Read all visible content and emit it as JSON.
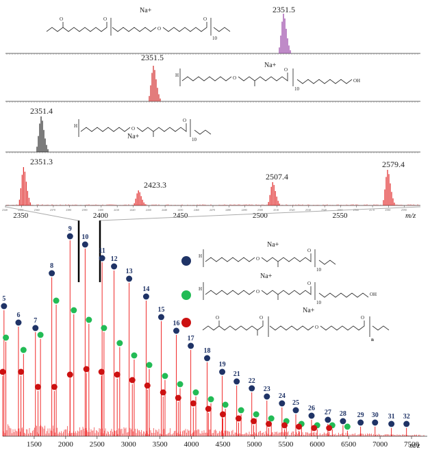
{
  "chart_data": [
    {
      "type": "line",
      "panel": "inset-1",
      "color": "#8a2a9a",
      "peak_labels": [
        {
          "x": 2351.5,
          "text": "2351.5"
        }
      ],
      "ion": "Na+",
      "structure_subscript": "10"
    },
    {
      "type": "line",
      "panel": "inset-2",
      "color": "#cc1111",
      "peak_labels": [
        {
          "x": 2351.5,
          "text": "2351.5"
        }
      ],
      "ion": "Na+",
      "structure_subscript": "10"
    },
    {
      "type": "line",
      "panel": "inset-3",
      "color": "#111111",
      "peak_labels": [
        {
          "x": 2351.4,
          "text": "2351.4"
        }
      ],
      "ion": "Na+",
      "structure_subscript": "10"
    },
    {
      "type": "line",
      "panel": "zoom",
      "color": "#dd1111",
      "xlim": [
        2340,
        2600
      ],
      "peak_labels": [
        {
          "x": 2351.3,
          "text": "2351.3"
        },
        {
          "x": 2423.3,
          "text": "2423.3"
        },
        {
          "x": 2507.4,
          "text": "2507.4"
        },
        {
          "x": 2579.4,
          "text": "2579.4"
        }
      ],
      "minor_ticks": [
        "2340",
        "2350",
        "2360",
        "2370",
        "2380",
        "2390",
        "2400",
        "2410",
        "2420",
        "2430",
        "2440",
        "2450",
        "2460",
        "2470",
        "2480",
        "2490",
        "2500",
        "2510",
        "2520",
        "2530",
        "2540",
        "2550",
        "2560",
        "2570",
        "2580",
        "2590"
      ],
      "major_ticks": [
        "2350",
        "2400",
        "2450",
        "2500",
        "2550"
      ],
      "xlabel": "m/z"
    },
    {
      "type": "line",
      "panel": "full",
      "color": "#ee1111",
      "xlim": [
        1000,
        7750
      ],
      "xticks": [
        "1500",
        "2000",
        "2500",
        "3000",
        "3500",
        "4000",
        "4500",
        "5000",
        "5500",
        "6000",
        "6500",
        "7000",
        "7500"
      ],
      "xlabel": "m/z",
      "series": [
        {
          "name": "blue",
          "color": "#1f3366",
          "points": [
            {
              "n": "5",
              "x": 1020,
              "y": 0.95
            },
            {
              "n": "6",
              "x": 1250,
              "y": 0.83
            },
            {
              "n": "7",
              "x": 1520,
              "y": 0.79
            },
            {
              "n": "8",
              "x": 1780,
              "y": 1.19
            },
            {
              "n": "9",
              "x": 2070,
              "y": 1.46
            },
            {
              "n": "10",
              "x": 2310,
              "y": 1.4
            },
            {
              "n": "11",
              "x": 2580,
              "y": 1.3
            },
            {
              "n": "12",
              "x": 2770,
              "y": 1.24
            },
            {
              "n": "13",
              "x": 3010,
              "y": 1.15
            },
            {
              "n": "14",
              "x": 3280,
              "y": 1.02
            },
            {
              "n": "15",
              "x": 3520,
              "y": 0.87
            },
            {
              "n": "16",
              "x": 3760,
              "y": 0.77
            },
            {
              "n": "17",
              "x": 3990,
              "y": 0.66
            },
            {
              "n": "18",
              "x": 4250,
              "y": 0.57
            },
            {
              "n": "19",
              "x": 4490,
              "y": 0.47
            },
            {
              "n": "21",
              "x": 4720,
              "y": 0.4
            },
            {
              "n": "22",
              "x": 4960,
              "y": 0.35
            },
            {
              "n": "23",
              "x": 5200,
              "y": 0.29
            },
            {
              "n": "24",
              "x": 5440,
              "y": 0.24
            },
            {
              "n": "25",
              "x": 5660,
              "y": 0.19
            },
            {
              "n": "26",
              "x": 5910,
              "y": 0.15
            },
            {
              "n": "27",
              "x": 6170,
              "y": 0.12
            },
            {
              "n": "28",
              "x": 6410,
              "y": 0.11
            },
            {
              "n": "29",
              "x": 6690,
              "y": 0.1
            },
            {
              "n": "30",
              "x": 6920,
              "y": 0.1
            },
            {
              "n": "31",
              "x": 7180,
              "y": 0.09
            },
            {
              "n": "32",
              "x": 7420,
              "y": 0.09
            }
          ]
        },
        {
          "name": "green",
          "points": [
            {
              "x": 1050,
              "y": 0.72
            },
            {
              "x": 1330,
              "y": 0.63
            },
            {
              "x": 1600,
              "y": 0.74
            },
            {
              "x": 1850,
              "y": 0.99
            },
            {
              "x": 2130,
              "y": 0.92
            },
            {
              "x": 2370,
              "y": 0.85
            },
            {
              "x": 2610,
              "y": 0.79
            },
            {
              "x": 2860,
              "y": 0.68
            },
            {
              "x": 3090,
              "y": 0.59
            },
            {
              "x": 3330,
              "y": 0.52
            },
            {
              "x": 3580,
              "y": 0.44
            },
            {
              "x": 3820,
              "y": 0.38
            },
            {
              "x": 4070,
              "y": 0.32
            },
            {
              "x": 4310,
              "y": 0.27
            },
            {
              "x": 4540,
              "y": 0.23
            },
            {
              "x": 4790,
              "y": 0.19
            },
            {
              "x": 5030,
              "y": 0.16
            },
            {
              "x": 5270,
              "y": 0.13
            },
            {
              "x": 5510,
              "y": 0.11
            },
            {
              "x": 5750,
              "y": 0.09
            },
            {
              "x": 6000,
              "y": 0.08
            },
            {
              "x": 6240,
              "y": 0.08
            },
            {
              "x": 6480,
              "y": 0.07
            }
          ]
        },
        {
          "name": "red",
          "points": [
            {
              "x": 1000,
              "y": 0.47
            },
            {
              "x": 1290,
              "y": 0.47
            },
            {
              "x": 1560,
              "y": 0.36
            },
            {
              "x": 1820,
              "y": 0.36
            },
            {
              "x": 2070,
              "y": 0.45
            },
            {
              "x": 2330,
              "y": 0.49
            },
            {
              "x": 2570,
              "y": 0.47
            },
            {
              "x": 2820,
              "y": 0.45
            },
            {
              "x": 3060,
              "y": 0.41
            },
            {
              "x": 3300,
              "y": 0.37
            },
            {
              "x": 3550,
              "y": 0.32
            },
            {
              "x": 3790,
              "y": 0.28
            },
            {
              "x": 4030,
              "y": 0.24
            },
            {
              "x": 4270,
              "y": 0.2
            },
            {
              "x": 4500,
              "y": 0.16
            },
            {
              "x": 4750,
              "y": 0.13
            },
            {
              "x": 4990,
              "y": 0.11
            },
            {
              "x": 5230,
              "y": 0.09
            },
            {
              "x": 5480,
              "y": 0.08
            },
            {
              "x": 5710,
              "y": 0.07
            },
            {
              "x": 5950,
              "y": 0.06
            },
            {
              "x": 6190,
              "y": 0.06
            }
          ]
        }
      ]
    }
  ],
  "legend": {
    "ion": "Na+",
    "entries": [
      {
        "color": "#1f3366",
        "subscript": "10"
      },
      {
        "color": "#22bb55",
        "subscript": "10"
      },
      {
        "color": "#cc1111",
        "subscript": "n"
      }
    ]
  }
}
